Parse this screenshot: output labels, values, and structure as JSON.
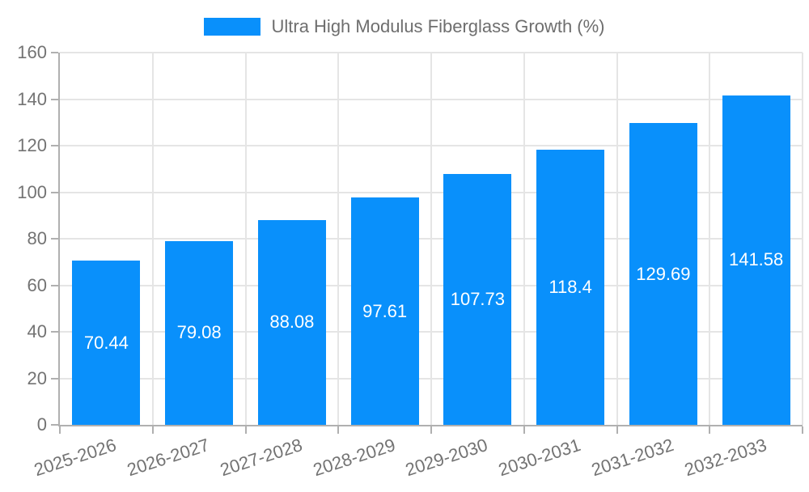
{
  "chart_data": {
    "type": "bar",
    "title": "",
    "legend": "Ultra High Modulus Fiberglass Growth (%)",
    "legend_position": "top-center",
    "categories": [
      "2025-2026",
      "2026-2027",
      "2027-2028",
      "2028-2029",
      "2029-2030",
      "2030-2031",
      "2031-2032",
      "2032-2033"
    ],
    "series": [
      {
        "name": "Ultra High Modulus Fiberglass Growth (%)",
        "values": [
          70.44,
          79.08,
          88.08,
          97.61,
          107.73,
          118.4,
          129.69,
          141.58
        ],
        "value_labels": [
          "70.44",
          "79.08",
          "88.08",
          "97.61",
          "107.73",
          "118.4",
          "129.69",
          "141.58"
        ]
      }
    ],
    "xlabel": "",
    "ylabel": "",
    "ylim": [
      0,
      160
    ],
    "ytick_step": 20,
    "ytick_labels": [
      "0",
      "20",
      "40",
      "60",
      "80",
      "100",
      "120",
      "140",
      "160"
    ],
    "grid": true,
    "value_labels_inside_bars": true,
    "x_label_rotation_deg": -18
  },
  "colors": {
    "bar": "#0990fb",
    "grid": "#e5e5e5",
    "axis": "#b0b0b0",
    "tick_text": "#737373",
    "legend_text": "#6e6e6e",
    "value_text": "#ffffff",
    "background": "#ffffff"
  }
}
